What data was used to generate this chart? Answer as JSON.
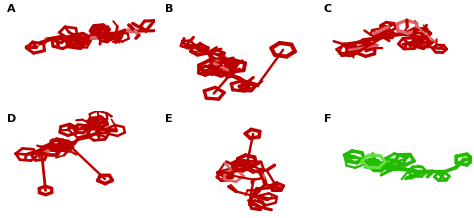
{
  "panels": [
    "A",
    "B",
    "C",
    "D",
    "E",
    "F"
  ],
  "grid": [
    2,
    3
  ],
  "bg_color": "#ffffff",
  "border_color": "#aaaaaa",
  "label_fontsize": 8,
  "red_color": "#bb0000",
  "light_red_color": "#dd6666",
  "green_color": "#22bb00",
  "light_green_color": "#66dd44",
  "figsize": [
    4.74,
    2.18
  ],
  "dpi": 100,
  "seeds": [
    101,
    202,
    303,
    404,
    505,
    606
  ]
}
